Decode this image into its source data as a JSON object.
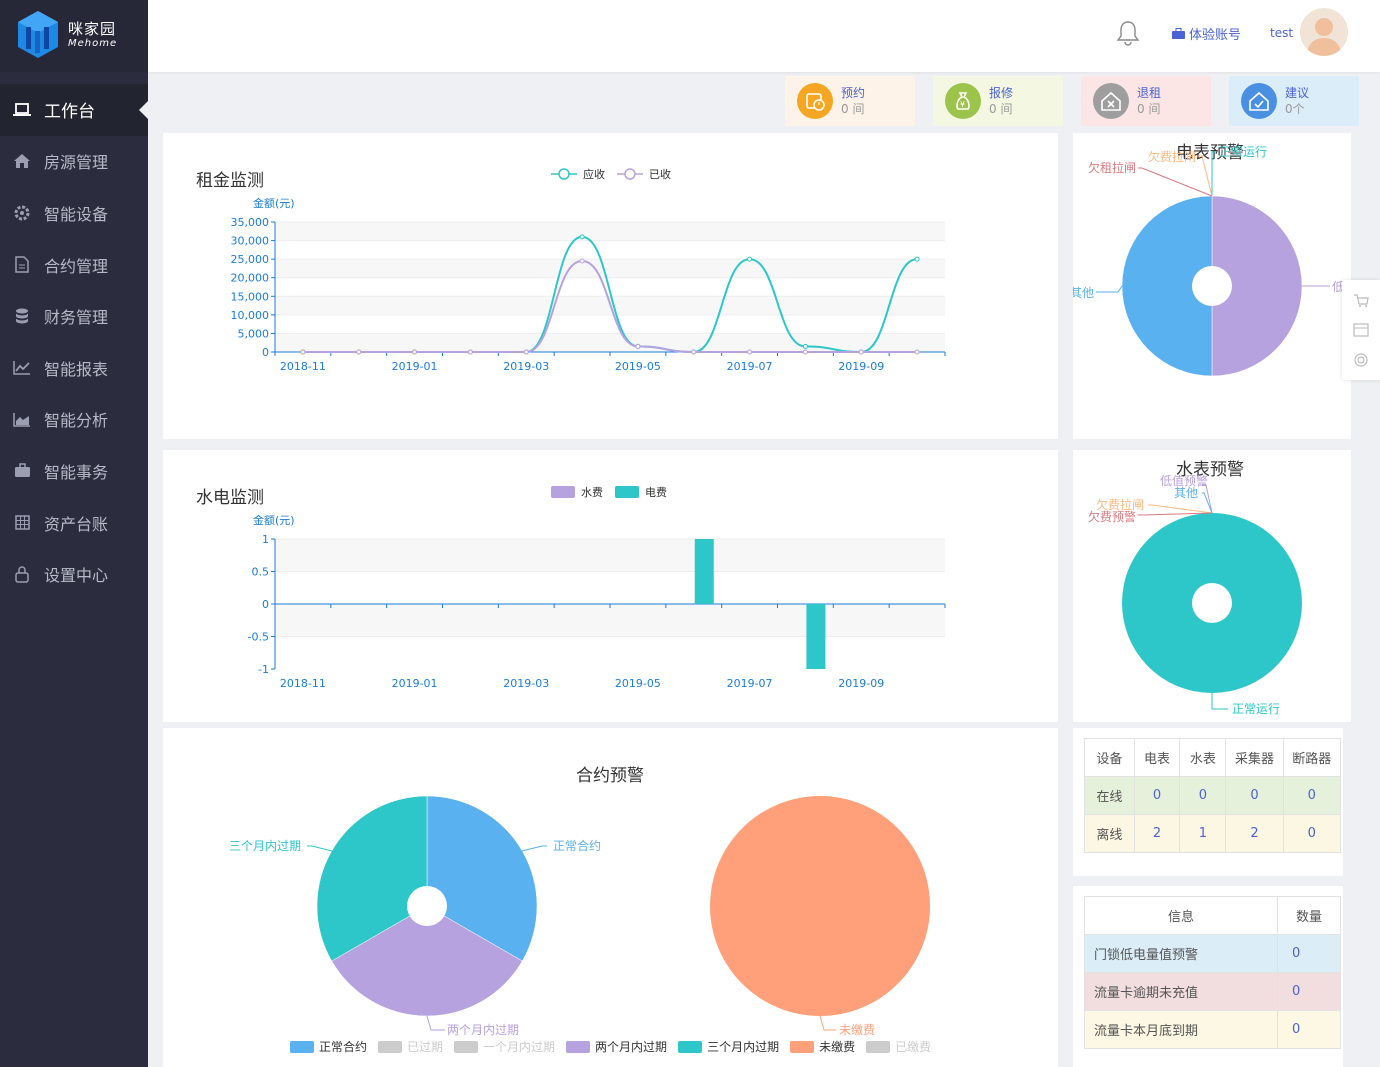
{
  "brand": {
    "name": "咪家园",
    "sub": "Mehome"
  },
  "sidebar": {
    "items": [
      {
        "label": "工作台",
        "icon": "laptop-icon",
        "active": true
      },
      {
        "label": "房源管理",
        "icon": "home-icon"
      },
      {
        "label": "智能设备",
        "icon": "gear-icon"
      },
      {
        "label": "合约管理",
        "icon": "document-icon"
      },
      {
        "label": "财务管理",
        "icon": "database-icon"
      },
      {
        "label": "智能报表",
        "icon": "line-chart-icon"
      },
      {
        "label": "智能分析",
        "icon": "area-chart-icon"
      },
      {
        "label": "智能事务",
        "icon": "briefcase-icon"
      },
      {
        "label": "资产台账",
        "icon": "grid-icon"
      },
      {
        "label": "设置中心",
        "icon": "lock-icon"
      }
    ]
  },
  "header": {
    "account_label": "体验账号",
    "username": "test"
  },
  "quick_cards": [
    {
      "title": "预约",
      "value": "0 间",
      "bg": "#fdf3e8",
      "icon_bg": "#f5a623",
      "icon": "calendar-clock-icon"
    },
    {
      "title": "报修",
      "value": "0 间",
      "bg": "#f4f8e3",
      "icon_bg": "#9cc34a",
      "icon": "money-bag-icon"
    },
    {
      "title": "退租",
      "value": "0 间",
      "bg": "#fbe5e5",
      "icon_bg": "#9e9e9e",
      "icon": "house-x-icon"
    },
    {
      "title": "建议",
      "value": "0个",
      "bg": "#dcedfa",
      "icon_bg": "#4a90e2",
      "icon": "house-check-icon"
    }
  ],
  "rent_panel": {
    "title": "租金监测",
    "ylabel": "金额(元)",
    "legend": [
      "应收",
      "已收"
    ]
  },
  "utility_panel": {
    "title": "水电监测",
    "ylabel": "金额(元)",
    "legend": [
      "水费",
      "电费"
    ]
  },
  "meter_panel": {
    "title": "电表预警"
  },
  "water_panel": {
    "title": "水表预警"
  },
  "contract_panel": {
    "title": "合约预警",
    "legend": [
      "正常合约",
      "已过期",
      "一个月内过期",
      "两个月内过期",
      "三个月内过期",
      "未缴费",
      "已缴费"
    ]
  },
  "device_table": {
    "headers": [
      "设备",
      "电表",
      "水表",
      "采集器",
      "断路器"
    ],
    "rows": [
      {
        "label": "在线",
        "values": [
          "0",
          "0",
          "0",
          "0"
        ]
      },
      {
        "label": "离线",
        "values": [
          "2",
          "1",
          "2",
          "0"
        ]
      }
    ]
  },
  "info_table": {
    "headers": [
      "信息",
      "数量"
    ],
    "rows": [
      {
        "label": "门锁低电量值预警",
        "value": "0"
      },
      {
        "label": "流量卡逾期未充值",
        "value": "0"
      },
      {
        "label": "流量卡本月底到期",
        "value": "0"
      }
    ]
  },
  "chart_data": [
    {
      "type": "line",
      "title": "租金监测",
      "ylabel": "金额(元)",
      "x": [
        "2018-11",
        "2018-12",
        "2019-01",
        "2019-02",
        "2019-03",
        "2019-04",
        "2019-05",
        "2019-06",
        "2019-07",
        "2019-08",
        "2019-09",
        "2019-10"
      ],
      "xticks": [
        "2018-11",
        "2019-01",
        "2019-03",
        "2019-05",
        "2019-07",
        "2019-09"
      ],
      "ylim": [
        0,
        35000
      ],
      "yticks": [
        "0",
        "5,000",
        "10,000",
        "15,000",
        "20,000",
        "25,000",
        "30,000",
        "35,000"
      ],
      "series": [
        {
          "name": "应收",
          "color": "#2ec7c9",
          "values": [
            0,
            0,
            0,
            0,
            0,
            31000,
            1500,
            0,
            25000,
            1500,
            0,
            25000
          ]
        },
        {
          "name": "已收",
          "color": "#b6a2de",
          "values": [
            0,
            0,
            0,
            0,
            0,
            24500,
            1500,
            0,
            0,
            0,
            0,
            0
          ]
        }
      ]
    },
    {
      "type": "bar",
      "title": "水电监测",
      "ylabel": "金额(元)",
      "x": [
        "2018-11",
        "2018-12",
        "2019-01",
        "2019-02",
        "2019-03",
        "2019-04",
        "2019-05",
        "2019-06",
        "2019-07",
        "2019-08",
        "2019-09",
        "2019-10"
      ],
      "xticks": [
        "2018-11",
        "2019-01",
        "2019-03",
        "2019-05",
        "2019-07",
        "2019-09"
      ],
      "ylim": [
        -1,
        1
      ],
      "yticks": [
        "-1",
        "-0.5",
        "0",
        "0.5",
        "1"
      ],
      "series": [
        {
          "name": "水费",
          "color": "#b6a2de",
          "values": [
            0,
            0,
            0,
            0,
            0,
            0,
            0,
            0,
            0,
            0,
            0,
            0
          ]
        },
        {
          "name": "电费",
          "color": "#2ec7c9",
          "values": [
            0,
            0,
            0,
            0,
            0,
            0,
            0,
            1,
            0,
            -1,
            0,
            0
          ]
        }
      ]
    },
    {
      "type": "pie",
      "title": "电表预警",
      "labels": [
        "正常运行",
        "欠费拉闸",
        "欠租拉闸",
        "其他",
        "低"
      ],
      "slices": [
        {
          "label": "正常运行",
          "value": 0,
          "color": "#2ec7c9"
        },
        {
          "label": "欠费拉闸",
          "value": 0,
          "color": "#ffb980"
        },
        {
          "label": "欠租拉闸",
          "value": 0,
          "color": "#d87a80"
        },
        {
          "label": "其他",
          "value": 1,
          "color": "#5ab1ef"
        },
        {
          "label": "低",
          "value": 1,
          "color": "#b6a2de"
        }
      ]
    },
    {
      "type": "pie",
      "title": "水表预警",
      "slices": [
        {
          "label": "正常运行",
          "value": 1,
          "color": "#2ec7c9"
        },
        {
          "label": "欠费预警",
          "value": 0,
          "color": "#d87a80"
        },
        {
          "label": "欠费拉闸",
          "value": 0,
          "color": "#ffb980"
        },
        {
          "label": "其他",
          "value": 0,
          "color": "#5ab1ef"
        },
        {
          "label": "低值预警",
          "value": 0,
          "color": "#b6a2de"
        }
      ]
    },
    {
      "type": "pie",
      "title": "合约预警",
      "slices": [
        {
          "label": "正常合约",
          "value": 1,
          "color": "#5ab1ef"
        },
        {
          "label": "两个月内过期",
          "value": 1,
          "color": "#b6a2de"
        },
        {
          "label": "三个月内过期",
          "value": 1,
          "color": "#2ec7c9"
        }
      ]
    },
    {
      "type": "pie",
      "slices": [
        {
          "label": "未缴费",
          "value": 1,
          "color": "#ffa07a"
        }
      ]
    }
  ]
}
